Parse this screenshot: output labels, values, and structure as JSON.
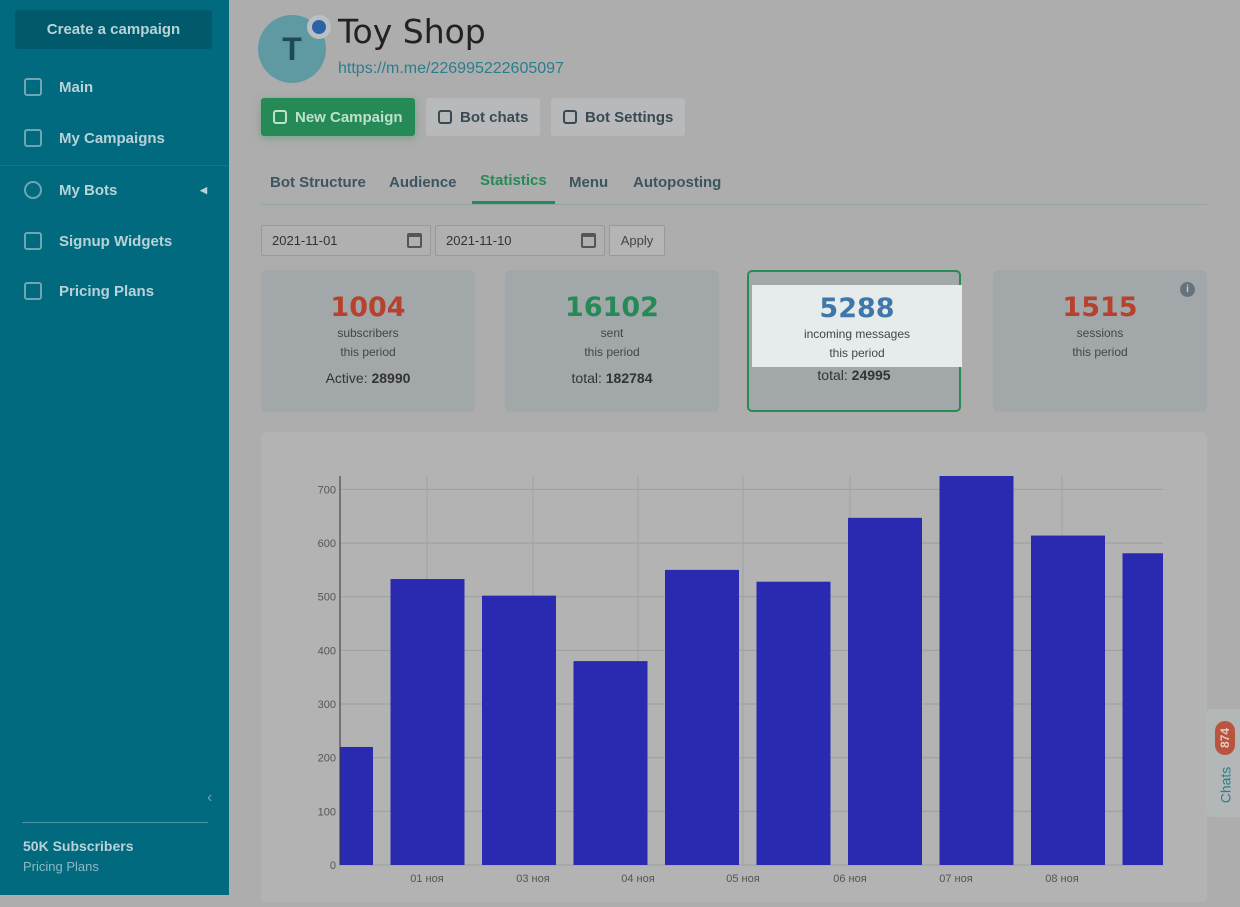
{
  "sidebar": {
    "create_label": "Create a campaign",
    "items": [
      {
        "label": "Main",
        "icon": "sliders-icon"
      },
      {
        "label": "My Campaigns",
        "icon": "upload-icon"
      },
      {
        "label": "My Bots",
        "icon": "globe-icon"
      },
      {
        "label": "Signup Widgets",
        "icon": "widget-icon"
      },
      {
        "label": "Pricing Plans",
        "icon": "wallet-icon"
      }
    ],
    "footer_title": "50K Subscribers",
    "footer_sub": "Pricing Plans"
  },
  "header": {
    "avatar_letter": "T",
    "title": "Toy Shop",
    "url": "https://m.me/226995222605097"
  },
  "toolbar": {
    "new_campaign": "New Campaign",
    "bot_chats": "Bot chats",
    "bot_settings": "Bot Settings"
  },
  "tabs": [
    {
      "label": "Bot Structure"
    },
    {
      "label": "Audience"
    },
    {
      "label": "Statistics",
      "active": true
    },
    {
      "label": "Menu"
    },
    {
      "label": "Autoposting"
    }
  ],
  "filter": {
    "date_from": "2021-11-01",
    "date_to": "2021-11-10",
    "apply": "Apply"
  },
  "stats": [
    {
      "value": "1004",
      "label1": "subscribers",
      "label2": "this period",
      "total_label": "Active:",
      "total": "28990",
      "color": "#b8402e"
    },
    {
      "value": "16102",
      "label1": "sent",
      "label2": "this period",
      "total_label": "total:",
      "total": "182784",
      "color": "#268a57"
    },
    {
      "value": "5288",
      "label1": "incoming messages",
      "label2": "this period",
      "total_label": "total:",
      "total": "24995",
      "color": "#3f77a8"
    },
    {
      "value": "1515",
      "label1": "sessions",
      "label2": "this period",
      "color": "#b8402e"
    }
  ],
  "chats": {
    "label": "Chats",
    "count": "874"
  },
  "chart_data": {
    "type": "bar",
    "values": [
      220,
      533,
      502,
      380,
      550,
      528,
      647,
      725,
      614,
      581
    ],
    "yticks": [
      0,
      100,
      200,
      300,
      400,
      500,
      600,
      700
    ],
    "xticks": [
      "01 ноя",
      "03 ноя",
      "04 ноя",
      "05 ноя",
      "06 ноя",
      "07 ноя",
      "08 ноя"
    ],
    "ylim": [
      0,
      725
    ],
    "bar_color": "#2a2ab0",
    "grid": true
  }
}
